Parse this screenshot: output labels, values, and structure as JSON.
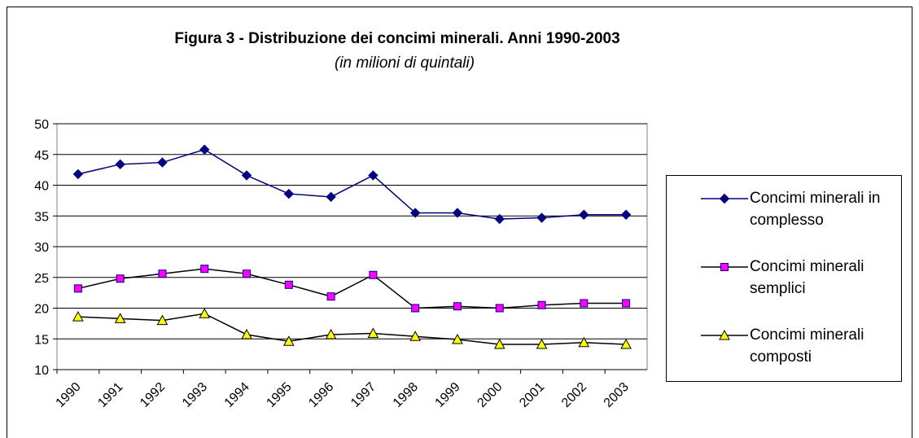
{
  "chart_data": {
    "type": "line",
    "title": "Figura 3 - Distribuzione dei concimi minerali. Anni 1990-2003",
    "subtitle": "(in milioni di quintali)",
    "categories": [
      "1990",
      "1991",
      "1992",
      "1993",
      "1994",
      "1995",
      "1996",
      "1997",
      "1998",
      "1999",
      "2000",
      "2001",
      "2002",
      "2003"
    ],
    "series": [
      {
        "name": "Concimi minerali in complesso",
        "color": "#000080",
        "line_color": "#000080",
        "marker": "diamond",
        "values": [
          41.8,
          43.4,
          43.7,
          45.8,
          41.6,
          38.6,
          38.1,
          41.6,
          35.5,
          35.5,
          34.5,
          34.7,
          35.2,
          35.2
        ]
      },
      {
        "name": "Concimi minerali semplici",
        "color": "#ff00ff",
        "line_color": "#000000",
        "marker": "square",
        "values": [
          23.2,
          24.8,
          25.6,
          26.4,
          25.6,
          23.8,
          21.9,
          25.4,
          20.0,
          20.3,
          20.0,
          20.5,
          20.8,
          20.8
        ]
      },
      {
        "name": "Concimi minerali composti",
        "color": "#ffff00",
        "line_color": "#000000",
        "marker": "triangle",
        "values": [
          18.6,
          18.3,
          18.0,
          19.1,
          15.7,
          14.6,
          15.7,
          15.9,
          15.4,
          14.9,
          14.1,
          14.1,
          14.4,
          14.1
        ]
      }
    ],
    "ylim": [
      10,
      50
    ],
    "yticks": [
      10,
      15,
      20,
      25,
      30,
      35,
      40,
      45,
      50
    ],
    "grid": true,
    "legend": "right"
  }
}
